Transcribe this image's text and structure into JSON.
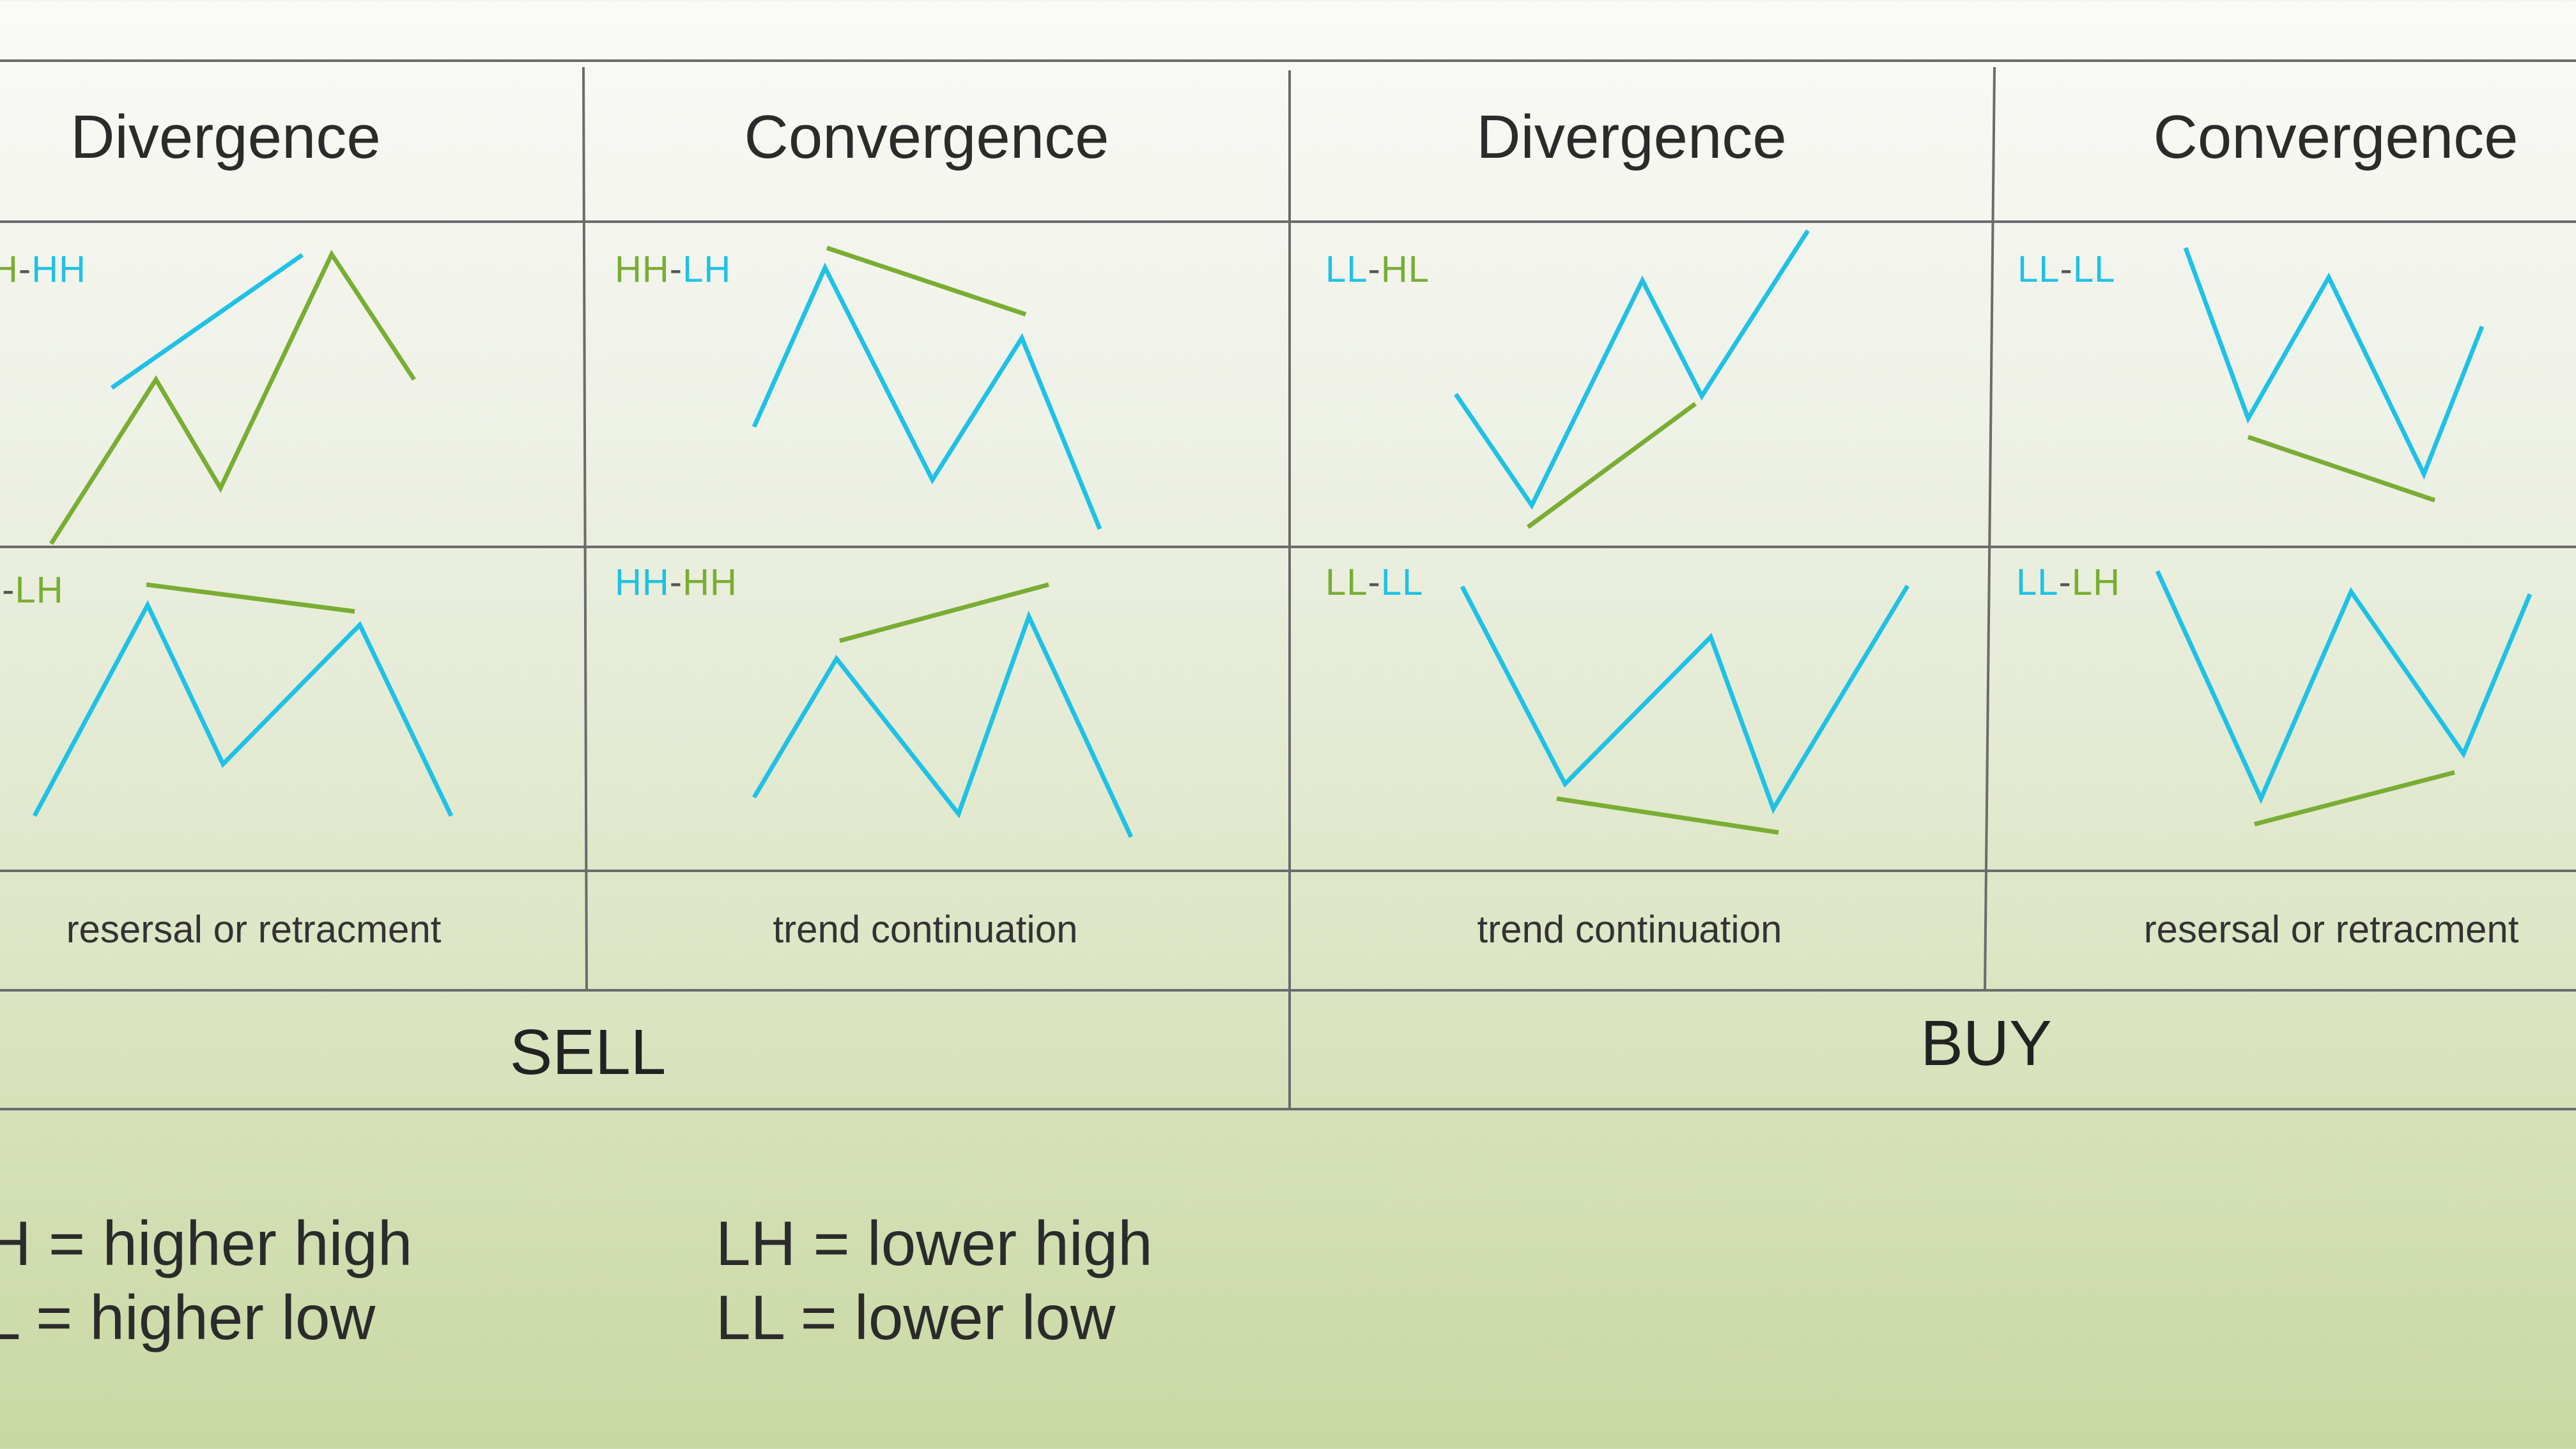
{
  "columns": [
    {
      "heading": "Divergence"
    },
    {
      "heading": "Convergence"
    },
    {
      "heading": "Divergence"
    },
    {
      "heading": "Convergence"
    }
  ],
  "cells": {
    "c1_top": {
      "first": "H",
      "sep": "-",
      "second": "HH"
    },
    "c2_top": {
      "first": "HH",
      "sep": "-",
      "second": "LH"
    },
    "c3_top": {
      "first": "LL",
      "sep": "-",
      "second": "HL"
    },
    "c4_top": {
      "first": "LL",
      "sep": "-",
      "second": "LL"
    },
    "c1_bot": {
      "first": "I",
      "sep": "-",
      "second": "LH"
    },
    "c2_bot": {
      "first": "HH",
      "sep": "-",
      "second": "HH"
    },
    "c3_bot": {
      "first": "LL",
      "sep": "-",
      "second": "LL"
    },
    "c4_bot": {
      "first": "LL",
      "sep": "-",
      "second": "LH"
    }
  },
  "notes": [
    "resersal or retracment",
    "trend continuation",
    "trend continuation",
    "resersal or retracment"
  ],
  "signals": {
    "sell": "SELL",
    "buy": "BUY"
  },
  "legend": {
    "hh": "H = higher high",
    "hl": "L = higher low",
    "lh": "LH = lower high",
    "ll": "LL = lower low"
  },
  "colors": {
    "price_trace": "#1fc1e6",
    "indicator_trace": "#79ad33",
    "grid": "#6b6b6b"
  }
}
